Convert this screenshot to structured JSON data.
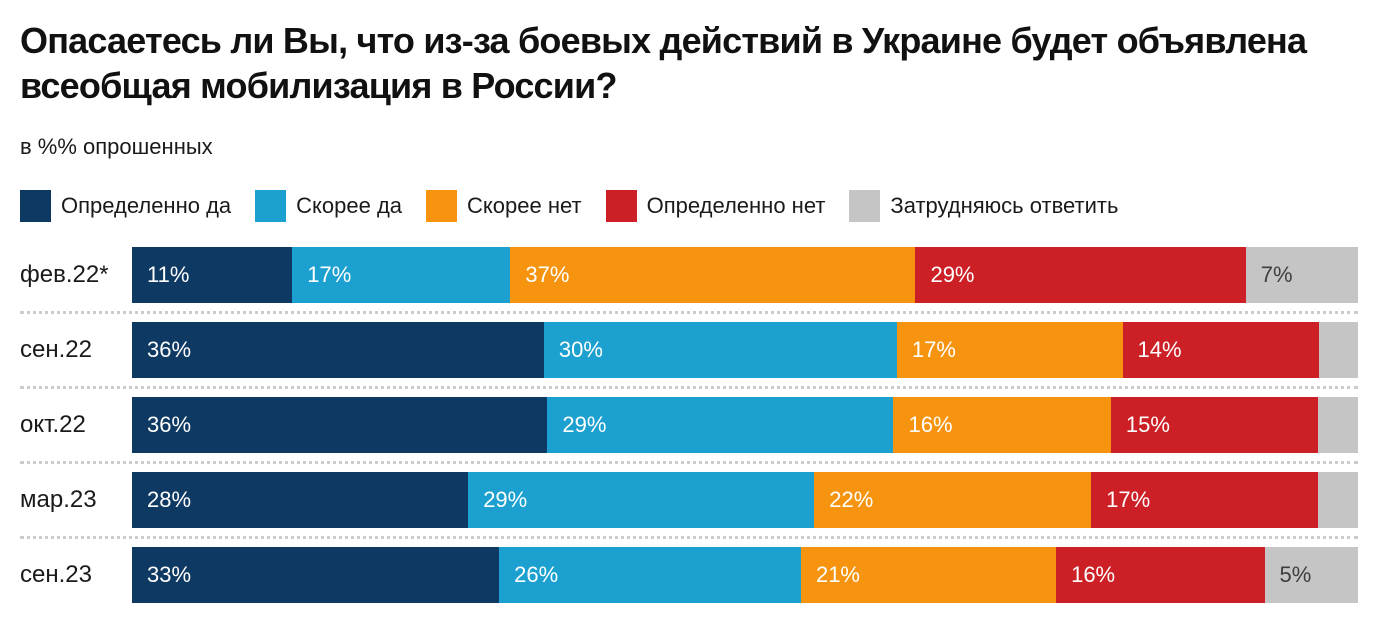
{
  "title": "Опасаетесь ли Вы, что из-за боевых действий в Украине будет объявлена всеобщая мобилизация в России?",
  "subtitle": "в %% опрошенных",
  "palette": {
    "definitely_yes": "#0E3963",
    "rather_yes": "#1CA0D0",
    "rather_no": "#F6940F",
    "definitely_no": "#CC2026",
    "hard_to_say": "#C5C5C6",
    "label_on_dark": "#FFFFFF",
    "label_on_gray": "#3F3F3F",
    "divider": "#CCCCCC"
  },
  "chart_data": {
    "type": "bar",
    "orientation": "horizontal_stacked",
    "title": "Опасаетесь ли Вы, что из-за боевых действий в Украине будет объявлена всеобщая мобилизация в России?",
    "subtitle": "в %% опрошенных",
    "unit": "%",
    "legend_position": "top",
    "grid": false,
    "categories": [
      "фев.22*",
      "сен.22",
      "окт.22",
      "мар.23",
      "сен.23"
    ],
    "series": [
      {
        "name": "Определенно да",
        "color": "#0E3963",
        "label_color": "#FFFFFF",
        "values": [
          11,
          36,
          36,
          28,
          33
        ],
        "label_visible": [
          true,
          true,
          true,
          true,
          true
        ]
      },
      {
        "name": "Скорее да",
        "color": "#1CA0D0",
        "label_color": "#FFFFFF",
        "values": [
          17,
          30,
          29,
          29,
          26
        ],
        "label_visible": [
          true,
          true,
          true,
          true,
          true
        ]
      },
      {
        "name": "Скорее нет",
        "color": "#F6940F",
        "label_color": "#FFFFFF",
        "values": [
          37,
          17,
          16,
          22,
          21
        ],
        "label_visible": [
          true,
          true,
          true,
          true,
          true
        ]
      },
      {
        "name": "Определенно нет",
        "color": "#CC2026",
        "label_color": "#FFFFFF",
        "values": [
          29,
          14,
          15,
          17,
          16
        ],
        "label_visible": [
          true,
          true,
          true,
          true,
          true
        ]
      },
      {
        "name": "Затрудняюсь ответить",
        "color": "#C5C5C6",
        "label_color": "#3F3F3F",
        "values": [
          7,
          4,
          4,
          4,
          5
        ],
        "label_visible": [
          true,
          false,
          false,
          false,
          true
        ]
      }
    ]
  }
}
